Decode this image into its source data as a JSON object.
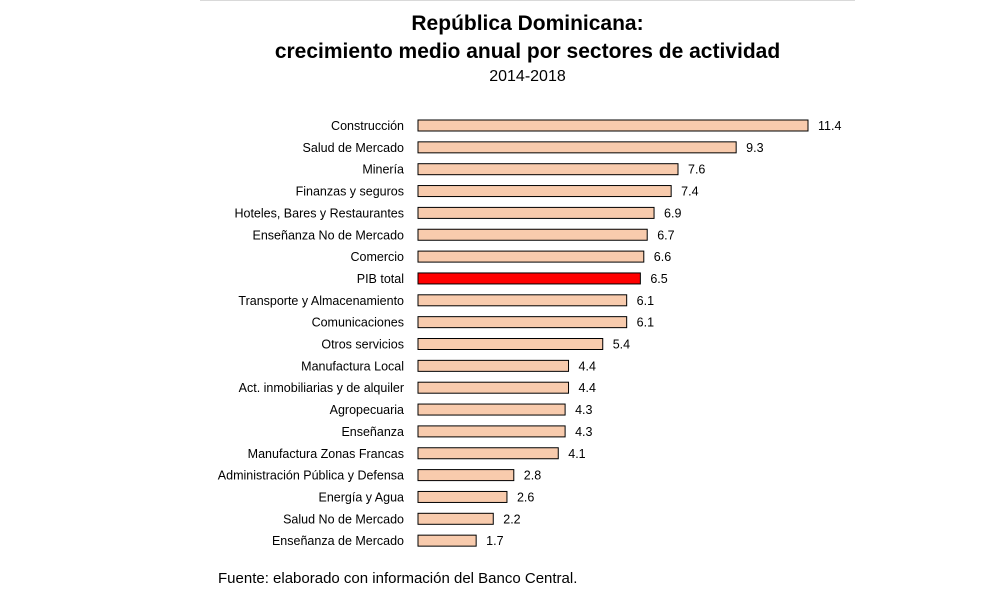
{
  "chart_data": {
    "type": "bar",
    "orientation": "horizontal",
    "title": "República Dominicana:",
    "title_line2": "crecimiento medio anual por sectores de actividad",
    "subtitle": "2014-2018",
    "source": "Fuente:  elaborado con información del Banco Central.",
    "categories": [
      "Construcción",
      "Salud de Mercado",
      "Minería",
      "Finanzas y seguros",
      "Hoteles, Bares y Restaurantes",
      "Enseñanza No de Mercado",
      "Comercio",
      "PIB total",
      "Transporte y Almacenamiento",
      "Comunicaciones",
      "Otros servicios",
      "Manufactura Local",
      "Act. inmobiliarias y de alquiler",
      "Agropecuaria",
      "Enseñanza",
      "Manufactura Zonas Francas",
      "Administración Pública y Defensa",
      "Energía y Agua",
      "Salud No de Mercado",
      "Enseñanza de Mercado"
    ],
    "values": [
      11.4,
      9.3,
      7.6,
      7.4,
      6.9,
      6.7,
      6.6,
      6.5,
      6.1,
      6.1,
      5.4,
      4.4,
      4.4,
      4.3,
      4.3,
      4.1,
      2.8,
      2.6,
      2.2,
      1.7
    ],
    "value_labels": [
      "11.4",
      "9.3",
      "7.6",
      "7.4",
      "6.9",
      "6.7",
      "6.6",
      "6.5",
      "6.1",
      "6.1",
      "5.4",
      "4.4",
      "4.4",
      "4.3",
      "4.3",
      "4.1",
      "2.8",
      "2.6",
      "2.2",
      "1.7"
    ],
    "highlight_category": "PIB total",
    "xlim": [
      0,
      11.4
    ],
    "grid": false,
    "legend": "none",
    "colors": {
      "bar": "#f8cbad",
      "highlight": "#ff0000",
      "bar_border": "#000000"
    }
  }
}
